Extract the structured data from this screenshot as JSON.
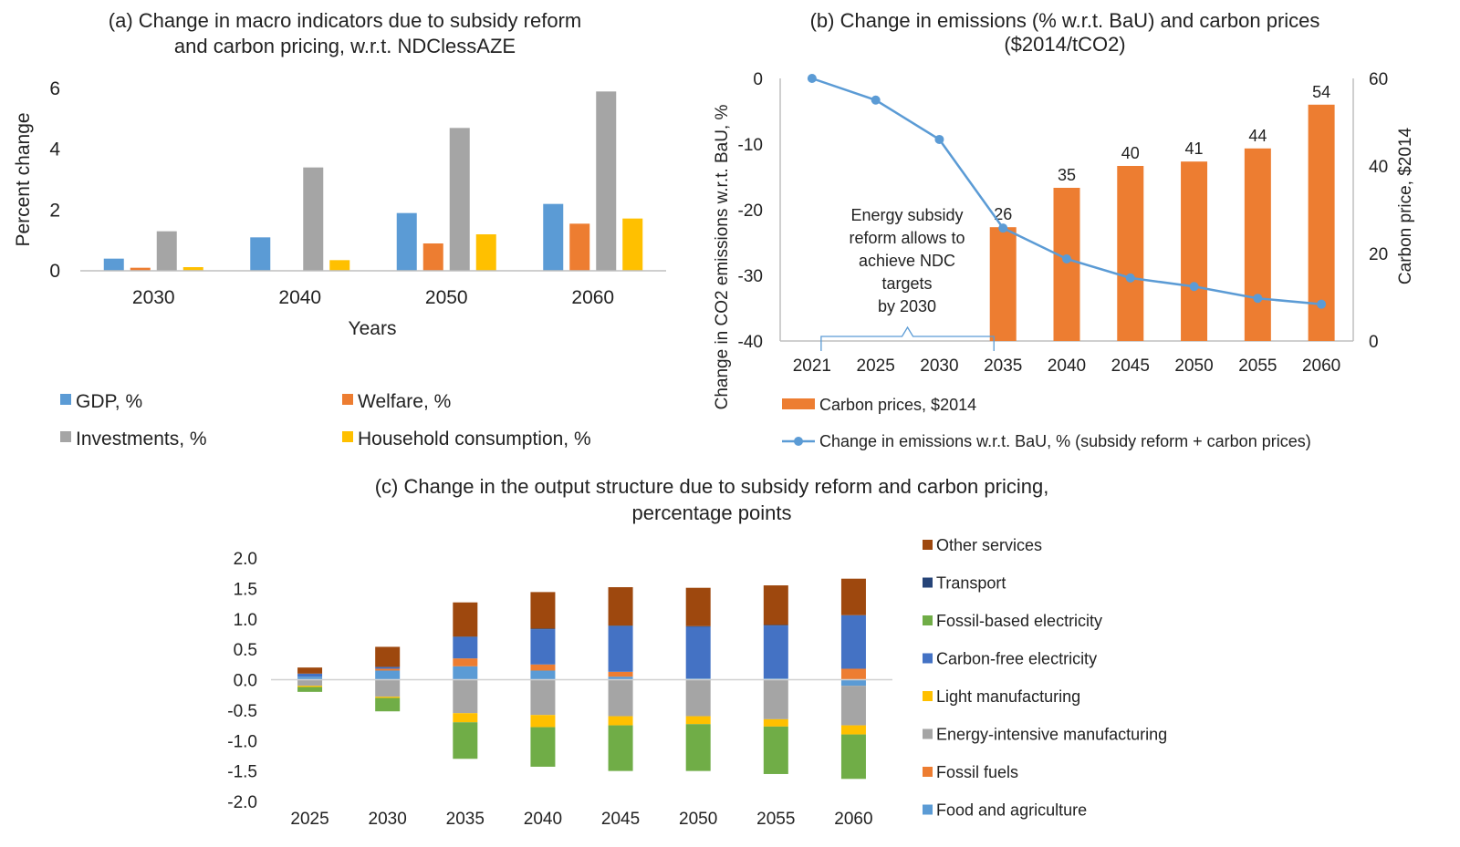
{
  "chart_data": [
    {
      "type": "bar",
      "title": "(a) Change in macro indicators due to subsidy reform and carbon pricing, w.r.t. NDClessAZE",
      "title_lines": [
        "(a) Change in macro indicators due to subsidy reform",
        "and carbon pricing, w.r.t. NDClessAZE"
      ],
      "xlabel": "Years",
      "ylabel": "Percent change",
      "ylim": [
        0,
        6
      ],
      "yticks": [
        "0",
        "2",
        "4",
        "6"
      ],
      "grid": false,
      "legend_position": "bottom",
      "categories": [
        "2030",
        "2040",
        "2050",
        "2060"
      ],
      "series": [
        {
          "name": "GDP, %",
          "color": "#5b9bd5",
          "values": [
            0.4,
            1.1,
            1.9,
            2.2
          ]
        },
        {
          "name": "Welfare, %",
          "color": "#ed7d31",
          "values": [
            0.1,
            0.0,
            0.9,
            1.55
          ]
        },
        {
          "name": "Investments, %",
          "color": "#a5a5a5",
          "values": [
            1.3,
            3.4,
            4.7,
            5.9
          ]
        },
        {
          "name": "Household consumption, %",
          "color": "#ffc000",
          "values": [
            0.12,
            0.35,
            1.2,
            1.72
          ]
        }
      ]
    },
    {
      "type": "bar",
      "title": "(b) Change in emissions (% w.r.t. BaU) and carbon prices ($2014/tCO2)",
      "title_lines": [
        "(b) Change in emissions (% w.r.t. BaU) and carbon prices",
        "($2014/tCO2)"
      ],
      "ylabel": "Change in CO2 emissions w.r.t. BaU, %",
      "y2label": "Carbon price, $2014",
      "ylim": [
        -40,
        0
      ],
      "y2lim": [
        0,
        60
      ],
      "yticks": [
        "0",
        "-10",
        "-20",
        "-30",
        "-40"
      ],
      "y2ticks": [
        "60",
        "40",
        "20",
        "0"
      ],
      "legend_position": "bottom",
      "categories": [
        "2021",
        "2025",
        "2030",
        "2035",
        "2040",
        "2045",
        "2050",
        "2055",
        "2060"
      ],
      "series": [
        {
          "name": "Carbon prices, $2014",
          "type": "bar",
          "axis": "right",
          "color": "#ed7d31",
          "values": [
            null,
            null,
            null,
            26,
            35,
            40,
            41,
            44,
            54
          ]
        },
        {
          "name": "Change in emissions w.r.t. BaU, % (subsidy reform + carbon prices)",
          "type": "line",
          "axis": "left",
          "color": "#5b9bd5",
          "values": [
            0,
            -3.3,
            -9.3,
            -22.8,
            -27.5,
            -30.4,
            -31.7,
            -33.5,
            -34.4
          ]
        }
      ],
      "data_labels": [
        "26",
        "35",
        "40",
        "41",
        "44",
        "54"
      ],
      "annotation_lines": [
        "Energy subsidy",
        "reform allows to",
        "achieve NDC",
        "targets",
        "by 2030"
      ]
    },
    {
      "type": "bar",
      "stacked": true,
      "title": "(c) Change in the output structure due to subsidy reform and carbon pricing, percentage points",
      "title_lines": [
        "(c) Change in the output structure due to subsidy reform and carbon pricing,",
        "percentage points"
      ],
      "ylim": [
        -2.0,
        2.0
      ],
      "yticks": [
        "2.0",
        "1.5",
        "1.0",
        "0.5",
        "0.0",
        "-0.5",
        "-1.0",
        "-1.5",
        "-2.0"
      ],
      "legend_position": "right",
      "categories": [
        "2025",
        "2030",
        "2035",
        "2040",
        "2045",
        "2050",
        "2055",
        "2060"
      ],
      "series": [
        {
          "name": "Food and agriculture",
          "color": "#5b9bd5",
          "values": [
            0.05,
            0.15,
            0.22,
            0.15,
            0.05,
            0.02,
            0.02,
            -0.1
          ]
        },
        {
          "name": "Fossil fuels",
          "color": "#ed7d31",
          "values": [
            0.0,
            0.03,
            0.13,
            0.1,
            0.08,
            0.0,
            0.0,
            0.18
          ]
        },
        {
          "name": "Energy-intensive manufacturing",
          "color": "#a5a5a5",
          "values": [
            -0.1,
            -0.28,
            -0.55,
            -0.58,
            -0.6,
            -0.6,
            -0.65,
            -0.65
          ]
        },
        {
          "name": "Light manufacturing",
          "color": "#ffc000",
          "values": [
            -0.02,
            -0.02,
            -0.15,
            -0.2,
            -0.15,
            -0.13,
            -0.12,
            -0.15
          ]
        },
        {
          "name": "Carbon-free electricity",
          "color": "#4472c4",
          "values": [
            0.05,
            0.03,
            0.35,
            0.58,
            0.75,
            0.85,
            0.87,
            0.88
          ]
        },
        {
          "name": "Fossil-based electricity",
          "color": "#70ad47",
          "values": [
            -0.08,
            -0.22,
            -0.6,
            -0.65,
            -0.75,
            -0.77,
            -0.78,
            -0.73
          ]
        },
        {
          "name": "Transport",
          "color": "#264478",
          "values": [
            0.0,
            0.0,
            0.01,
            0.01,
            0.01,
            0.01,
            0.01,
            0.0
          ]
        },
        {
          "name": "Other services",
          "color": "#9e480e",
          "values": [
            0.1,
            0.33,
            0.56,
            0.6,
            0.63,
            0.63,
            0.65,
            0.6
          ]
        }
      ]
    }
  ]
}
